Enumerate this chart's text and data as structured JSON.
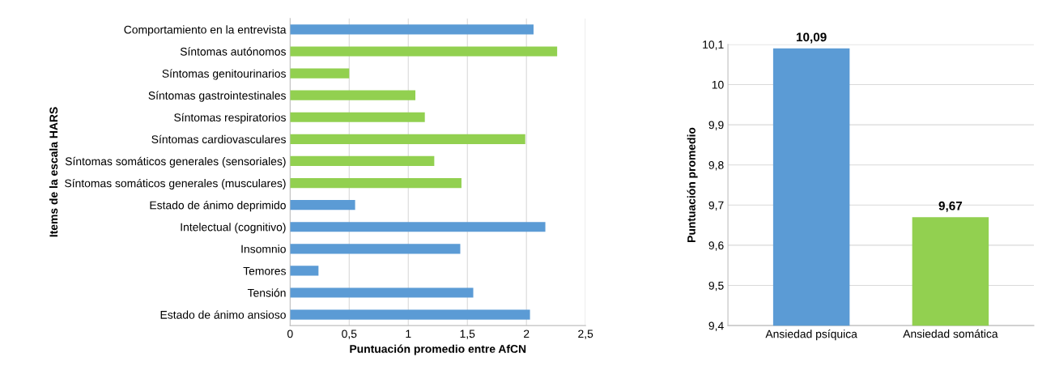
{
  "chart_data": [
    {
      "type": "bar",
      "orientation": "horizontal",
      "xlabel": "Puntuación promedio entre AfCN",
      "ylabel": "Items de la escala HARS",
      "categories": [
        "Comportamiento en la entrevista",
        "Síntomas autónomos",
        "Síntomas genitourinarios",
        "Síntomas gastrointestinales",
        "Síntomas respiratorios",
        "Síntomas cardiovasculares",
        "Síntomas somáticos generales (sensoriales)",
        "Síntomas somáticos generales (musculares)",
        "Estado de ánimo deprimido",
        "Intelectual (cognitivo)",
        "Insomnio",
        "Temores",
        "Tensión",
        "Estado de ánimo ansioso"
      ],
      "values": [
        2.06,
        2.26,
        0.5,
        1.06,
        1.14,
        1.99,
        1.22,
        1.45,
        0.55,
        2.16,
        1.44,
        0.24,
        1.55,
        2.03
      ],
      "colors": [
        "#5b9bd5",
        "#92d050",
        "#92d050",
        "#92d050",
        "#92d050",
        "#92d050",
        "#92d050",
        "#92d050",
        "#5b9bd5",
        "#5b9bd5",
        "#5b9bd5",
        "#5b9bd5",
        "#5b9bd5",
        "#5b9bd5"
      ],
      "xlim": [
        0,
        2.5
      ],
      "xticks": [
        0,
        {
          "value": 0.5,
          "label": "0,5"
        },
        1,
        {
          "value": 1.5,
          "label": "1,5"
        },
        2,
        {
          "value": 2.5,
          "label": "2,5"
        }
      ],
      "grid": "x"
    },
    {
      "type": "bar",
      "ylabel": "Puntuación promedio",
      "categories": [
        "Ansiedad psíquica",
        "Ansiedad somática"
      ],
      "values": [
        10.09,
        9.67
      ],
      "colors": [
        "#5b9bd5",
        "#92d050"
      ],
      "value_labels": [
        "10,09",
        "9,67"
      ],
      "ylim": [
        9.4,
        10.1
      ],
      "yticks": [
        {
          "value": 9.4,
          "label": "9,4"
        },
        {
          "value": 9.5,
          "label": "9,5"
        },
        {
          "value": 9.6,
          "label": "9,6"
        },
        {
          "value": 9.7,
          "label": "9,7"
        },
        {
          "value": 9.8,
          "label": "9,8"
        },
        {
          "value": 9.9,
          "label": "9,9"
        },
        10,
        {
          "value": 10.1,
          "label": "10,1"
        }
      ],
      "grid": "y"
    }
  ]
}
